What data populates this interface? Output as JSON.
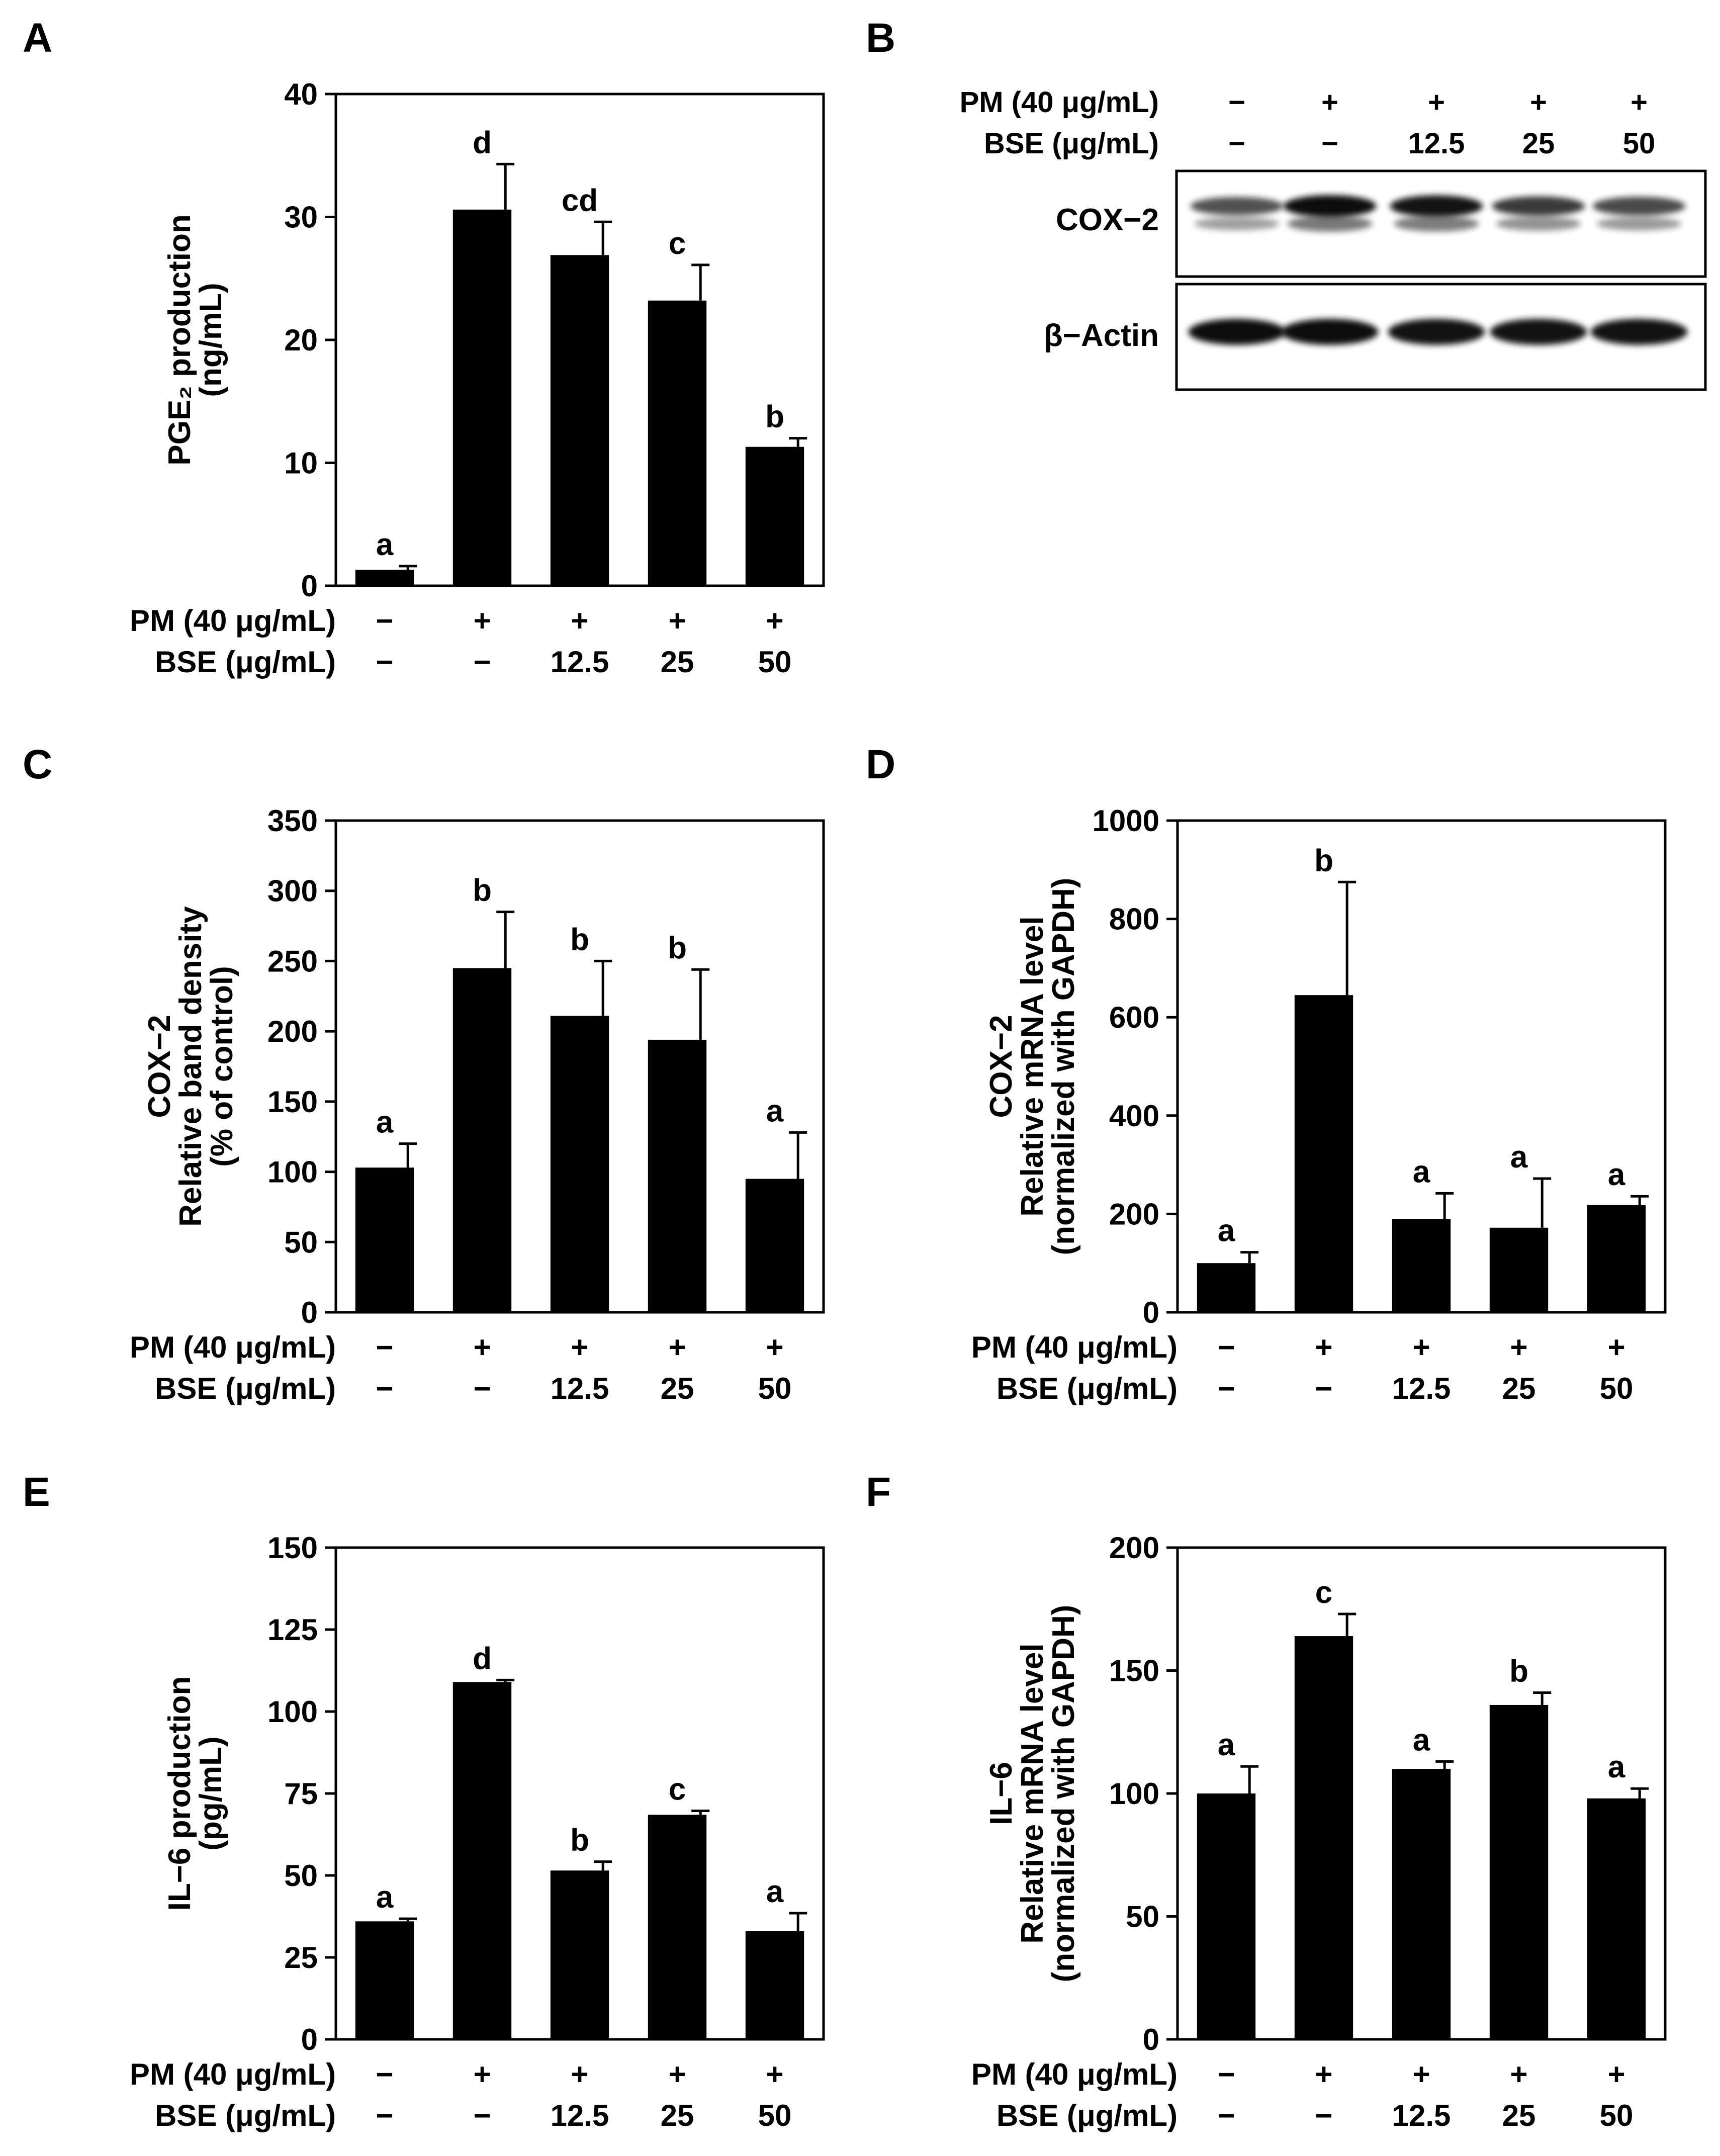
{
  "treatments": {
    "pm_label": "PM (40 μg/mL)",
    "bse_label": "BSE (μg/mL)",
    "pm": [
      "−",
      "+",
      "+",
      "+",
      "+"
    ],
    "bse": [
      "−",
      "−",
      "12.5",
      "25",
      "50"
    ]
  },
  "chart_data": [
    {
      "panel": "A",
      "type": "bar",
      "ylabel_lines": [
        "PGE₂ production",
        "(ng/mL)"
      ],
      "ylim": [
        0,
        40
      ],
      "yticks": [
        0,
        10,
        20,
        30,
        40
      ],
      "categories": [
        "Control",
        "PM",
        "PM+BSE 12.5",
        "PM+BSE 25",
        "PM+BSE 50"
      ],
      "values": [
        1.3,
        30.6,
        26.9,
        23.2,
        11.3
      ],
      "errors": [
        0.3,
        3.7,
        2.7,
        2.9,
        0.7
      ],
      "sig_labels": [
        "a",
        "d",
        "cd",
        "c",
        "b"
      ]
    },
    {
      "panel": "C",
      "type": "bar",
      "ylabel_lines": [
        "COX−2",
        "Relative band density",
        "(% of control)"
      ],
      "ylim": [
        0,
        350
      ],
      "yticks": [
        0,
        50,
        100,
        150,
        200,
        250,
        300,
        350
      ],
      "categories": [
        "Control",
        "PM",
        "PM+BSE 12.5",
        "PM+BSE 25",
        "PM+BSE 50"
      ],
      "values": [
        103,
        245,
        211,
        194,
        95
      ],
      "errors": [
        17,
        40,
        39,
        50,
        33
      ],
      "sig_labels": [
        "a",
        "b",
        "b",
        "b",
        "a"
      ]
    },
    {
      "panel": "D",
      "type": "bar",
      "ylabel_lines": [
        "COX−2",
        "Relative mRNA level",
        "(normalized with GAPDH)"
      ],
      "ylim": [
        0,
        1000
      ],
      "yticks": [
        0,
        200,
        400,
        600,
        800,
        1000
      ],
      "categories": [
        "Control",
        "PM",
        "PM+BSE 12.5",
        "PM+BSE 25",
        "PM+BSE 50"
      ],
      "values": [
        100,
        645,
        190,
        172,
        218
      ],
      "errors": [
        22,
        230,
        52,
        100,
        18
      ],
      "sig_labels": [
        "a",
        "b",
        "a",
        "a",
        "a"
      ]
    },
    {
      "panel": "E",
      "type": "bar",
      "ylabel_lines": [
        "IL−6 production",
        "(pg/mL)"
      ],
      "ylim": [
        0,
        150
      ],
      "yticks": [
        0,
        25,
        50,
        75,
        100,
        125,
        150
      ],
      "categories": [
        "Control",
        "PM",
        "PM+BSE 12.5",
        "PM+BSE 25",
        "PM+BSE 50"
      ],
      "values": [
        36,
        109,
        51.5,
        68.5,
        33
      ],
      "errors": [
        0.8,
        0.6,
        2.7,
        1.2,
        5.5
      ],
      "sig_labels": [
        "a",
        "d",
        "b",
        "c",
        "a"
      ]
    },
    {
      "panel": "F",
      "type": "bar",
      "ylabel_lines": [
        "IL−6",
        "Relative mRNA level",
        "(normalized with GAPDH)"
      ],
      "ylim": [
        0,
        200
      ],
      "yticks": [
        0,
        50,
        100,
        150,
        200
      ],
      "categories": [
        "Control",
        "PM",
        "PM+BSE 12.5",
        "PM+BSE 25",
        "PM+BSE 50"
      ],
      "values": [
        100,
        164,
        110,
        136,
        98
      ],
      "errors": [
        11,
        9,
        3,
        5,
        4
      ],
      "sig_labels": [
        "a",
        "c",
        "a",
        "b",
        "a"
      ]
    }
  ],
  "blot": {
    "panel": "B",
    "labels": [
      "COX−2",
      "β−Actin"
    ],
    "cox2_intensity": [
      0.55,
      1.0,
      0.95,
      0.7,
      0.6
    ],
    "actin_intensity": [
      1.0,
      1.0,
      0.97,
      0.97,
      0.97
    ]
  }
}
